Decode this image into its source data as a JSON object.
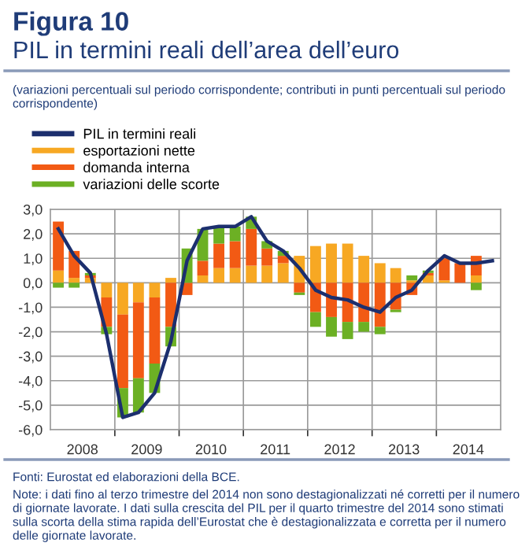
{
  "chart_data": {
    "type": "bar",
    "stacked": true,
    "title": "Figura 10",
    "subtitle": "PIL in termini reali dell’area dell’euro",
    "annotations": [
      "(variazioni percentuali sul periodo corrispondente; contributi in punti percentuali sul periodo corrispondente)",
      "Fonti: Eurostat ed elaborazioni della BCE.",
      "Note: i dati fino al terzo trimestre del 2014 non sono destagionalizzati né corretti per il numero di giornate lavorate. I dati sulla crescita del PIL per il quarto trimestre del 2014 sono stimati sulla scorta della stima rapida dell’Eurostat che è destagionalizzata e corretta per il numero delle giornate lavorate."
    ],
    "x": [
      "2008-02-15",
      "2008-05-15",
      "2008-08-15",
      "2008-11-15",
      "2009-02-15",
      "2009-05-15",
      "2009-08-15",
      "2009-11-15",
      "2010-02-15",
      "2010-05-15",
      "2010-08-15",
      "2010-11-15",
      "2011-02-15",
      "2011-05-15",
      "2011-08-15",
      "2011-11-15",
      "2012-02-15",
      "2012-05-15",
      "2012-08-15",
      "2012-11-15",
      "2013-02-15",
      "2013-05-15",
      "2013-08-15",
      "2013-11-15",
      "2014-02-15",
      "2014-05-15",
      "2014-08-15",
      "2014-11-15"
    ],
    "xlim": [
      "2008-01-01",
      "2015-01-01"
    ],
    "xticks": [
      {
        "value": "2009-01-01",
        "label": null
      },
      {
        "value": "2010-01-01",
        "label": null
      },
      {
        "value": "2011-01-01",
        "label": null
      },
      {
        "value": "2012-01-01",
        "label": null
      },
      {
        "value": "2013-01-01",
        "label": null
      },
      {
        "value": "2014-01-01",
        "label": null
      },
      {
        "value": "2008-07-01",
        "label": "2008"
      },
      {
        "value": "2009-07-01",
        "label": "2009"
      },
      {
        "value": "2010-07-01",
        "label": "2010"
      },
      {
        "value": "2011-07-01",
        "label": "2011"
      },
      {
        "value": "2012-07-01",
        "label": "2012"
      },
      {
        "value": "2013-07-01",
        "label": "2013"
      },
      {
        "value": "2014-07-01",
        "label": "2014"
      }
    ],
    "ylim": [
      -6,
      3
    ],
    "yticks": [
      {
        "value": -6,
        "label": "-6,0"
      },
      {
        "value": -5,
        "label": "-5,0"
      },
      {
        "value": -4,
        "label": "-4,0"
      },
      {
        "value": -3,
        "label": "-3,0"
      },
      {
        "value": -2,
        "label": "-2,0"
      },
      {
        "value": -1,
        "label": "-1,0"
      },
      {
        "value": 0,
        "label": "0,0"
      },
      {
        "value": 1,
        "label": "1,0"
      },
      {
        "value": 2,
        "label": "2,0"
      },
      {
        "value": 3,
        "label": "3,0"
      }
    ],
    "grid": true,
    "legend": "top left",
    "series": [
      {
        "name": "PIL in termini reali",
        "type": "line",
        "color": "#1c2f6e",
        "values": [
          2.2,
          1.1,
          0.4,
          -2.1,
          -5.5,
          -5.3,
          -4.5,
          -2.4,
          0.9,
          2.2,
          2.3,
          2.3,
          2.7,
          1.7,
          1.3,
          0.6,
          -0.3,
          -0.6,
          -0.7,
          -1.0,
          -1.2,
          -0.6,
          -0.3,
          0.5,
          1.1,
          0.8,
          0.8,
          0.9
        ]
      },
      {
        "name": "esportazioni nette",
        "color": "#f7a823",
        "values": [
          0.5,
          0.2,
          0.2,
          -0.6,
          -1.3,
          -0.8,
          -0.6,
          0.2,
          0.0,
          0.3,
          0.6,
          0.6,
          0.7,
          0.7,
          0.8,
          1.1,
          1.5,
          1.6,
          1.6,
          1.1,
          0.8,
          0.6,
          0.1,
          0.3,
          0.1,
          0.0,
          0.3,
          null
        ]
      },
      {
        "name": "domanda interna",
        "color": "#f25a14",
        "values": [
          2.0,
          1.1,
          0.1,
          -1.2,
          -3.0,
          -3.1,
          -2.7,
          -1.8,
          -0.5,
          0.6,
          1.0,
          1.1,
          1.5,
          0.7,
          0.3,
          -0.4,
          -1.2,
          -1.4,
          -1.6,
          -1.6,
          -1.8,
          -1.1,
          -0.5,
          0.1,
          0.9,
          0.8,
          0.8,
          null
        ]
      },
      {
        "name": "variazioni delle scorte",
        "color": "#6cb024",
        "values": [
          -0.2,
          -0.2,
          0.1,
          -0.3,
          -1.2,
          -1.4,
          -1.2,
          -0.8,
          1.4,
          1.3,
          0.7,
          0.6,
          0.5,
          0.3,
          0.2,
          -0.1,
          -0.6,
          -0.8,
          -0.7,
          -0.4,
          -0.3,
          -0.1,
          0.2,
          0.1,
          0.0,
          0.0,
          -0.3,
          null
        ]
      }
    ]
  }
}
